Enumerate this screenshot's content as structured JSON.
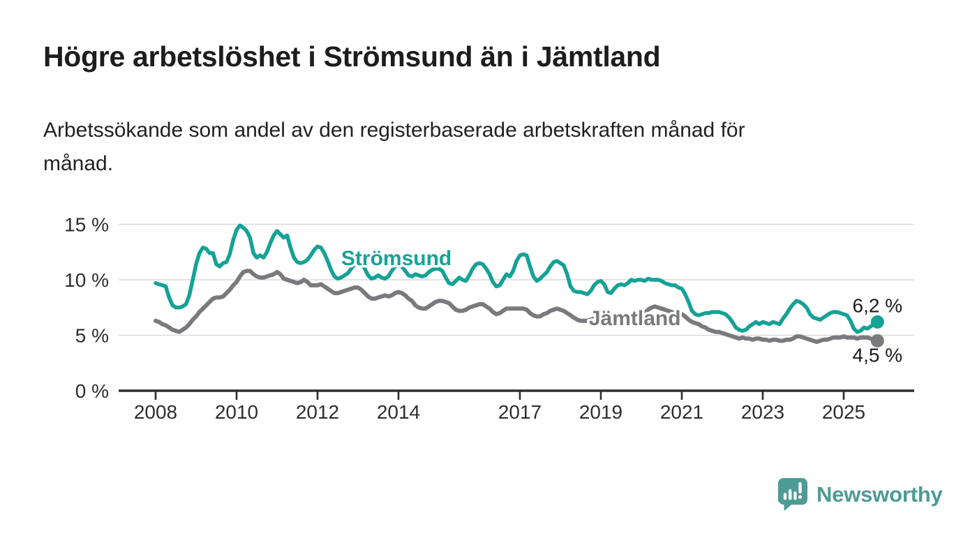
{
  "header": {
    "title": "Högre arbetslöshet i Strömsund än i Jämtland",
    "subtitle_line1": "Arbetssökande som andel av den registerbaserade arbetskraften månad för",
    "subtitle_line2": "månad."
  },
  "branding": {
    "name": "Newsworthy",
    "icon": "newsworthy-speech-bubble-barchart-icon",
    "color": "#4D9B95"
  },
  "chart_data": {
    "type": "line",
    "title": "Högre arbetslöshet i Strömsund än i Jämtland",
    "subtitle": "Arbetssökande som andel av den registerbaserade arbetskraften månad för månad.",
    "unit": "%",
    "grid": true,
    "x_start_year": 2008,
    "points_per_year": 12,
    "x_ticks": [
      2008,
      2010,
      2012,
      2014,
      2017,
      2019,
      2021,
      2023,
      2025
    ],
    "x_tick_labels": [
      "2008",
      "2010",
      "2012",
      "2014",
      "2017",
      "2019",
      "2021",
      "2023",
      "2025"
    ],
    "y_ticks": [
      0,
      5,
      10,
      15
    ],
    "y_tick_suffix": " %",
    "ylim": [
      0,
      15.5
    ],
    "axis_color": "#2e2e2e",
    "grid_color": "#d9d9d9",
    "value_label_color": "#1b1b1b",
    "series": [
      {
        "name": "Jämtland",
        "color": "#7A7A7E",
        "end_label": "4,5 %",
        "end_value": 4.5,
        "values": [
          6.3,
          6.2,
          6.0,
          5.9,
          5.7,
          5.5,
          5.4,
          5.3,
          5.5,
          5.7,
          6.0,
          6.4,
          6.7,
          7.1,
          7.4,
          7.7,
          8.0,
          8.3,
          8.4,
          8.4,
          8.5,
          8.8,
          9.1,
          9.5,
          9.8,
          10.3,
          10.7,
          10.8,
          10.8,
          10.5,
          10.3,
          10.2,
          10.2,
          10.3,
          10.4,
          10.5,
          10.7,
          10.5,
          10.1,
          10.0,
          9.9,
          9.8,
          9.7,
          9.8,
          10.0,
          9.8,
          9.5,
          9.5,
          9.5,
          9.6,
          9.4,
          9.2,
          9.0,
          8.8,
          8.8,
          8.9,
          9.0,
          9.1,
          9.2,
          9.3,
          9.3,
          9.1,
          8.8,
          8.5,
          8.3,
          8.3,
          8.4,
          8.5,
          8.6,
          8.5,
          8.6,
          8.8,
          8.9,
          8.8,
          8.6,
          8.3,
          8.1,
          7.7,
          7.5,
          7.4,
          7.4,
          7.6,
          7.8,
          8.0,
          8.1,
          8.1,
          8.0,
          7.9,
          7.6,
          7.3,
          7.2,
          7.2,
          7.3,
          7.5,
          7.6,
          7.7,
          7.8,
          7.8,
          7.6,
          7.4,
          7.1,
          6.9,
          7.0,
          7.2,
          7.4,
          7.4,
          7.4,
          7.4,
          7.4,
          7.4,
          7.3,
          7.0,
          6.8,
          6.7,
          6.7,
          6.9,
          7.0,
          7.2,
          7.3,
          7.4,
          7.3,
          7.2,
          7.0,
          6.8,
          6.6,
          6.4,
          6.3,
          6.3,
          6.3,
          6.4,
          6.5,
          6.5,
          6.5,
          6.4,
          6.3,
          6.2,
          6.3,
          6.4,
          6.4,
          6.4,
          6.5,
          6.6,
          6.7,
          6.8,
          6.9,
          7.0,
          7.3,
          7.5,
          7.6,
          7.5,
          7.4,
          7.3,
          7.2,
          7.1,
          7.0,
          7.0,
          6.9,
          6.7,
          6.4,
          6.2,
          6.1,
          6.0,
          5.8,
          5.7,
          5.5,
          5.4,
          5.3,
          5.3,
          5.2,
          5.1,
          5.0,
          4.9,
          4.8,
          4.7,
          4.8,
          4.7,
          4.7,
          4.6,
          4.7,
          4.7,
          4.6,
          4.6,
          4.5,
          4.6,
          4.6,
          4.5,
          4.5,
          4.6,
          4.6,
          4.7,
          4.9,
          4.9,
          4.8,
          4.7,
          4.6,
          4.5,
          4.4,
          4.5,
          4.6,
          4.6,
          4.7,
          4.8,
          4.8,
          4.8,
          4.9,
          4.8,
          4.8,
          4.8,
          4.7,
          4.8,
          4.8,
          4.8,
          4.7,
          4.6,
          4.5
        ]
      },
      {
        "name": "Strömsund",
        "color": "#15A296",
        "end_label": "6,2 %",
        "end_value": 6.2,
        "values": [
          9.7,
          9.6,
          9.5,
          9.4,
          8.4,
          7.7,
          7.5,
          7.5,
          7.6,
          7.8,
          8.6,
          10.0,
          11.4,
          12.4,
          12.9,
          12.8,
          12.4,
          12.4,
          11.4,
          11.2,
          11.5,
          11.6,
          12.3,
          13.6,
          14.5,
          14.9,
          14.7,
          14.4,
          13.8,
          12.4,
          12.0,
          12.2,
          12.0,
          12.5,
          13.3,
          14.0,
          14.4,
          14.1,
          13.8,
          14.0,
          12.9,
          12.0,
          11.6,
          11.5,
          11.6,
          11.8,
          12.2,
          12.7,
          13.0,
          12.9,
          12.4,
          11.7,
          10.9,
          10.3,
          10.1,
          10.2,
          10.4,
          10.6,
          11.0,
          11.4,
          11.6,
          11.5,
          11.0,
          10.4,
          10.1,
          10.2,
          10.4,
          10.2,
          10.1,
          10.3,
          10.8,
          11.2,
          11.3,
          11.2,
          10.8,
          10.4,
          10.3,
          10.5,
          10.4,
          10.3,
          10.4,
          10.7,
          10.9,
          11.0,
          11.0,
          10.8,
          10.2,
          9.7,
          9.6,
          9.9,
          10.2,
          10.0,
          9.9,
          10.4,
          11.0,
          11.4,
          11.5,
          11.4,
          11.0,
          10.5,
          9.8,
          9.4,
          9.5,
          10.0,
          10.5,
          10.3,
          10.8,
          11.7,
          12.2,
          12.3,
          12.2,
          11.2,
          10.3,
          9.9,
          10.1,
          10.4,
          10.7,
          11.2,
          11.6,
          11.7,
          11.5,
          11.3,
          10.5,
          9.4,
          9.0,
          8.9,
          8.9,
          8.8,
          8.7,
          9.0,
          9.5,
          9.8,
          9.9,
          9.6,
          8.9,
          8.8,
          9.2,
          9.5,
          9.6,
          9.5,
          9.7,
          10.0,
          9.9,
          10.0,
          10.0,
          9.9,
          10.1,
          10.0,
          10.0,
          10.0,
          9.9,
          9.7,
          9.6,
          9.5,
          9.5,
          9.3,
          9.2,
          8.7,
          8.0,
          7.2,
          6.9,
          6.8,
          6.9,
          7.0,
          7.0,
          7.1,
          7.1,
          7.1,
          7.0,
          6.9,
          6.6,
          6.2,
          5.7,
          5.5,
          5.4,
          5.5,
          5.8,
          6.0,
          6.2,
          6.0,
          6.2,
          6.1,
          6.0,
          6.2,
          6.1,
          6.0,
          6.5,
          6.9,
          7.4,
          7.8,
          8.1,
          8.0,
          7.8,
          7.5,
          6.9,
          6.6,
          6.5,
          6.4,
          6.6,
          6.8,
          7.0,
          7.1,
          7.1,
          7.0,
          6.9,
          6.8,
          6.3,
          5.6,
          5.3,
          5.4,
          5.7,
          5.6,
          5.8,
          6.0,
          6.2
        ]
      }
    ]
  }
}
